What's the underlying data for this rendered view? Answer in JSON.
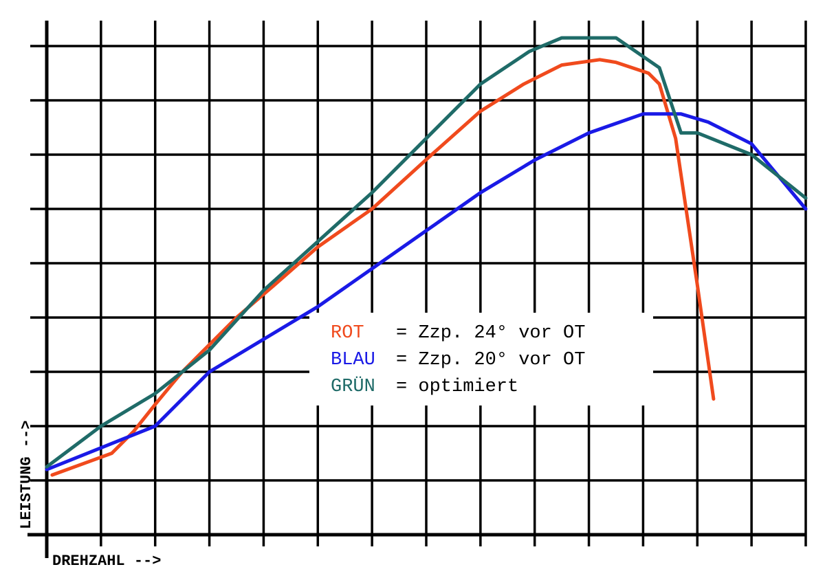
{
  "chart_data": {
    "type": "line",
    "title": "",
    "xlabel": "DREHZAHL -->",
    "ylabel": "LEISTUNG -->",
    "xlim": [
      0,
      14
    ],
    "ylim": [
      0,
      9
    ],
    "grid": true,
    "legend_position": "center-right",
    "legend": [
      {
        "key": "ROT",
        "text": "= Zzp. 24° vor OT",
        "color": "#f04a1d"
      },
      {
        "key": "BLAU",
        "text": "= Zzp. 20° vor OT",
        "color": "#1a1ae6"
      },
      {
        "key": "GRÜN",
        "text": "= optimiert",
        "color": "#1f6b68"
      }
    ],
    "series": [
      {
        "key": "ROT",
        "color": "#f04a1d",
        "x": [
          0.1,
          1.2,
          1.6,
          2.0,
          2.5,
          3.5,
          4.2,
          5.0,
          6.0,
          7.1,
          8.0,
          8.8,
          9.5,
          10.2,
          10.5,
          11.1,
          11.3,
          11.6,
          12.0,
          12.3
        ],
        "y": [
          1.1,
          1.5,
          1.9,
          2.4,
          3.0,
          4.0,
          4.6,
          5.3,
          6.0,
          7.0,
          7.8,
          8.3,
          8.65,
          8.75,
          8.7,
          8.5,
          8.3,
          7.3,
          4.6,
          2.5
        ]
      },
      {
        "key": "BLAU",
        "color": "#1a1ae6",
        "x": [
          0.0,
          1.5,
          2.0,
          2.5,
          3.0,
          4.0,
          5.0,
          6.0,
          7.0,
          8.0,
          9.0,
          10.0,
          11.0,
          11.7,
          12.2,
          13.0,
          14.0
        ],
        "y": [
          1.2,
          1.8,
          2.0,
          2.5,
          3.0,
          3.6,
          4.2,
          4.9,
          5.6,
          6.3,
          6.9,
          7.4,
          7.75,
          7.75,
          7.6,
          7.2,
          6.0
        ]
      },
      {
        "key": "GRÜN",
        "color": "#1f6b68",
        "x": [
          0.0,
          1.0,
          2.0,
          3.0,
          4.0,
          5.0,
          6.0,
          7.0,
          8.0,
          8.9,
          9.5,
          10.5,
          11.3,
          11.7,
          12.0,
          13.0,
          14.0
        ],
        "y": [
          1.25,
          2.0,
          2.6,
          3.4,
          4.5,
          5.4,
          6.3,
          7.3,
          8.3,
          8.9,
          9.15,
          9.15,
          8.6,
          7.4,
          7.4,
          7.0,
          6.2
        ]
      }
    ]
  }
}
